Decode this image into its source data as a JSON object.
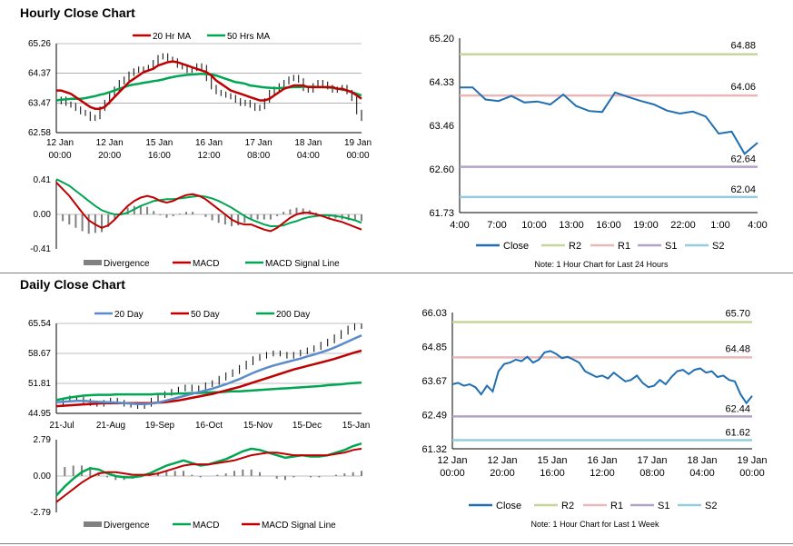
{
  "sections": [
    {
      "title": "Hourly Close Chart"
    },
    {
      "title": "Daily Close Chart"
    }
  ],
  "colors": {
    "ma_short": "#c00000",
    "ma_long": "#00a651",
    "ma_200": "#00a651",
    "ma_20day": "#5b8bc9",
    "close": "#1f6fb2",
    "r2": "#c4d79b",
    "r1": "#e6b9b8",
    "s1": "#b3a2c7",
    "s2": "#93cddd",
    "divergence": "#808080",
    "grid": "#808080"
  },
  "chart_data": [
    {
      "id": "hourly_price",
      "type": "line",
      "y_ticks": [
        "65.26",
        "64.37",
        "63.47",
        "62.58"
      ],
      "ylim": [
        62.58,
        65.26
      ],
      "x_ticks": [
        [
          "12 Jan",
          "00:00"
        ],
        [
          "12 Jan",
          "20:00"
        ],
        [
          "15 Jan",
          "16:00"
        ],
        [
          "16 Jan",
          "12:00"
        ],
        [
          "17 Jan",
          "08:00"
        ],
        [
          "18 Jan",
          "04:00"
        ],
        [
          "19 Jan",
          "00:00"
        ]
      ],
      "legend": [
        "20 Hr MA",
        "50 Hrs MA"
      ],
      "price": [
        63.5,
        63.6,
        63.45,
        63.4,
        63.3,
        63.2,
        63.15,
        63.0,
        63.05,
        63.3,
        63.5,
        63.7,
        63.9,
        64.1,
        64.2,
        64.35,
        64.45,
        64.5,
        64.5,
        64.55,
        64.7,
        64.85,
        64.9,
        64.8,
        64.75,
        64.6,
        64.55,
        64.45,
        64.5,
        64.6,
        64.55,
        64.2,
        63.95,
        63.8,
        63.75,
        63.7,
        63.65,
        63.55,
        63.45,
        63.5,
        63.4,
        63.3,
        63.35,
        63.55,
        63.8,
        63.9,
        64.0,
        64.1,
        64.2,
        64.25,
        64.15,
        63.9,
        63.85,
        64.0,
        64.1,
        64.05,
        63.95,
        63.85,
        63.9,
        63.95,
        63.8,
        63.6,
        63.2,
        63.0
      ],
      "ma20": [
        63.85,
        63.85,
        63.8,
        63.75,
        63.65,
        63.55,
        63.45,
        63.35,
        63.3,
        63.3,
        63.35,
        63.5,
        63.65,
        63.8,
        63.95,
        64.1,
        64.2,
        64.3,
        64.4,
        64.45,
        64.5,
        64.6,
        64.65,
        64.7,
        64.72,
        64.7,
        64.65,
        64.6,
        64.55,
        64.5,
        64.45,
        64.4,
        64.3,
        64.15,
        64.05,
        63.95,
        63.85,
        63.8,
        63.75,
        63.7,
        63.65,
        63.6,
        63.55,
        63.55,
        63.6,
        63.7,
        63.8,
        63.9,
        63.95,
        64.0,
        64.0,
        64.0,
        63.95,
        63.95,
        63.95,
        63.95,
        63.95,
        63.95,
        63.9,
        63.9,
        63.85,
        63.8,
        63.7,
        63.6
      ],
      "ma50": [
        63.55,
        63.57,
        63.58,
        63.6,
        63.6,
        63.6,
        63.62,
        63.65,
        63.68,
        63.72,
        63.75,
        63.8,
        63.85,
        63.9,
        63.95,
        64.0,
        64.03,
        64.05,
        64.08,
        64.1,
        64.13,
        64.15,
        64.18,
        64.22,
        64.25,
        64.28,
        64.3,
        64.32,
        64.33,
        64.34,
        64.35,
        64.34,
        64.33,
        64.3,
        64.25,
        64.2,
        64.15,
        64.1,
        64.08,
        64.05,
        64.0,
        63.98,
        63.96,
        63.94,
        63.93,
        63.92,
        63.92,
        63.93,
        63.94,
        63.95,
        63.95,
        63.96,
        63.96,
        63.96,
        63.95,
        63.95,
        63.94,
        63.93,
        63.9,
        63.88,
        63.85,
        63.8,
        63.75,
        63.7
      ]
    },
    {
      "id": "hourly_macd",
      "type": "line",
      "y_ticks": [
        "0.41",
        "0.00",
        "-0.41"
      ],
      "ylim": [
        -0.41,
        0.41
      ],
      "legend": [
        "Divergence",
        "MACD",
        "MACD Signal Line"
      ],
      "macd": [
        0.38,
        0.3,
        0.22,
        0.12,
        0.02,
        -0.07,
        -0.12,
        -0.16,
        -0.13,
        -0.06,
        0.02,
        0.1,
        0.16,
        0.2,
        0.22,
        0.2,
        0.16,
        0.14,
        0.16,
        0.2,
        0.23,
        0.24,
        0.22,
        0.18,
        0.12,
        0.06,
        0.0,
        -0.06,
        -0.1,
        -0.12,
        -0.12,
        -0.15,
        -0.18,
        -0.2,
        -0.16,
        -0.1,
        -0.04,
        0.0,
        0.02,
        0.02,
        0.0,
        -0.02,
        -0.05,
        -0.07,
        -0.09,
        -0.12,
        -0.15,
        -0.18
      ],
      "signal": [
        0.42,
        0.38,
        0.34,
        0.28,
        0.22,
        0.16,
        0.1,
        0.05,
        0.02,
        0.0,
        0.0,
        0.02,
        0.06,
        0.1,
        0.13,
        0.16,
        0.17,
        0.18,
        0.18,
        0.19,
        0.2,
        0.21,
        0.22,
        0.21,
        0.19,
        0.16,
        0.12,
        0.08,
        0.03,
        -0.02,
        -0.06,
        -0.09,
        -0.12,
        -0.14,
        -0.14,
        -0.13,
        -0.1,
        -0.08,
        -0.05,
        -0.03,
        -0.02,
        -0.01,
        -0.01,
        -0.02,
        -0.03,
        -0.05,
        -0.07,
        -0.1
      ],
      "divergence": [
        -0.04,
        -0.08,
        -0.12,
        -0.16,
        -0.2,
        -0.23,
        -0.22,
        -0.21,
        -0.15,
        -0.06,
        0.02,
        0.08,
        0.1,
        0.1,
        0.09,
        0.04,
        -0.01,
        -0.04,
        -0.02,
        0.01,
        0.03,
        0.03,
        0.0,
        -0.03,
        -0.07,
        -0.1,
        -0.12,
        -0.14,
        -0.13,
        -0.1,
        -0.06,
        -0.06,
        -0.06,
        -0.06,
        -0.02,
        0.03,
        0.06,
        0.08,
        0.07,
        0.05,
        0.02,
        -0.01,
        -0.04,
        -0.05,
        -0.06,
        -0.07,
        -0.08,
        -0.08
      ]
    },
    {
      "id": "hourly_pivot",
      "type": "line",
      "y_ticks": [
        "65.20",
        "64.33",
        "63.46",
        "62.60",
        "61.73"
      ],
      "ylim": [
        61.73,
        65.2
      ],
      "x_ticks": [
        "4:00",
        "7:00",
        "10:00",
        "13:00",
        "16:00",
        "19:00",
        "22:00",
        "1:00",
        "4:00"
      ],
      "legend": [
        "Close",
        "R2",
        "R1",
        "S1",
        "S2"
      ],
      "levels": {
        "r2": 64.88,
        "r1": 64.06,
        "s1": 62.64,
        "s2": 62.04
      },
      "level_labels": {
        "r2": "64.88",
        "r1": "64.06",
        "s1": "62.64",
        "s2": "62.04"
      },
      "close": [
        64.22,
        64.22,
        63.98,
        63.95,
        64.05,
        63.92,
        63.94,
        63.88,
        64.08,
        63.85,
        63.75,
        63.73,
        64.12,
        64.03,
        63.95,
        63.88,
        63.76,
        63.7,
        63.74,
        63.64,
        63.3,
        63.34,
        62.9,
        63.12
      ],
      "note": "Note: 1 Hour Chart for Last 24 Hours"
    },
    {
      "id": "daily_price",
      "type": "line",
      "y_ticks": [
        "65.54",
        "58.67",
        "51.81",
        "44.95"
      ],
      "ylim": [
        44.95,
        65.54
      ],
      "x_ticks": [
        "21-Jul",
        "21-Aug",
        "19-Sep",
        "16-Oct",
        "15-Nov",
        "15-Dec",
        "15-Jan"
      ],
      "legend": [
        "20 Day",
        "50 Day",
        "200 Day"
      ],
      "price": [
        47.0,
        48.0,
        48.5,
        48.2,
        47.8,
        47.2,
        47.0,
        47.5,
        48.0,
        47.5,
        47.0,
        46.8,
        46.5,
        47.0,
        48.0,
        49.0,
        49.5,
        50.0,
        50.5,
        51.0,
        50.5,
        50.8,
        51.5,
        52.0,
        53.0,
        53.8,
        54.5,
        55.5,
        56.5,
        57.5,
        58.0,
        58.5,
        58.8,
        58.5,
        58.0,
        58.5,
        59.0,
        59.5,
        60.0,
        60.8,
        61.5,
        62.5,
        63.5,
        64.5,
        65.0,
        64.8
      ],
      "ma20": [
        47.5,
        47.6,
        47.7,
        47.8,
        47.8,
        47.7,
        47.6,
        47.5,
        47.5,
        47.4,
        47.3,
        47.2,
        47.1,
        47.1,
        47.2,
        47.4,
        47.8,
        48.2,
        48.6,
        49.0,
        49.4,
        49.8,
        50.2,
        50.6,
        51.1,
        51.6,
        52.2,
        52.8,
        53.5,
        54.2,
        54.8,
        55.4,
        55.9,
        56.3,
        56.7,
        57.1,
        57.5,
        58.0,
        58.4,
        58.9,
        59.4,
        60.0,
        60.7,
        61.4,
        62.1,
        62.8
      ],
      "ma50": [
        46.6,
        46.7,
        46.8,
        46.9,
        47.0,
        47.1,
        47.2,
        47.3,
        47.3,
        47.3,
        47.3,
        47.3,
        47.3,
        47.3,
        47.3,
        47.4,
        47.5,
        47.7,
        47.9,
        48.2,
        48.5,
        48.8,
        49.1,
        49.4,
        49.8,
        50.2,
        50.6,
        51.0,
        51.5,
        52.0,
        52.5,
        53.0,
        53.5,
        54.0,
        54.5,
        55.0,
        55.4,
        55.8,
        56.2,
        56.6,
        57.0,
        57.4,
        57.9,
        58.4,
        58.9,
        59.3
      ],
      "ma200": [
        48.0,
        48.3,
        48.6,
        48.8,
        49.0,
        49.1,
        49.2,
        49.2,
        49.2,
        49.3,
        49.3,
        49.3,
        49.3,
        49.3,
        49.3,
        49.4,
        49.4,
        49.4,
        49.5,
        49.5,
        49.6,
        49.6,
        49.7,
        49.8,
        49.8,
        49.9,
        50.0,
        50.0,
        50.1,
        50.2,
        50.3,
        50.4,
        50.5,
        50.6,
        50.7,
        50.8,
        50.9,
        51.0,
        51.1,
        51.2,
        51.4,
        51.5,
        51.6,
        51.8,
        51.9,
        52.0
      ]
    },
    {
      "id": "daily_macd",
      "type": "line",
      "y_ticks": [
        "2.79",
        "0.00",
        "-2.79"
      ],
      "ylim": [
        -2.79,
        2.79
      ],
      "legend": [
        "Divergence",
        "MACD",
        "MACD Signal Line"
      ],
      "macd": [
        -1.5,
        -0.8,
        -0.2,
        0.3,
        0.6,
        0.5,
        0.2,
        0.0,
        -0.1,
        -0.1,
        0.0,
        0.2,
        0.5,
        0.8,
        1.0,
        1.2,
        1.0,
        0.8,
        0.9,
        1.1,
        1.3,
        1.6,
        1.9,
        2.1,
        2.0,
        1.8,
        1.6,
        1.4,
        1.5,
        1.6,
        1.5,
        1.5,
        1.6,
        1.8,
        2.0,
        2.3,
        2.5
      ],
      "signal": [
        -2.0,
        -1.5,
        -1.0,
        -0.5,
        -0.1,
        0.2,
        0.3,
        0.3,
        0.2,
        0.1,
        0.1,
        0.1,
        0.2,
        0.4,
        0.6,
        0.8,
        0.9,
        0.9,
        0.9,
        1.0,
        1.1,
        1.2,
        1.4,
        1.6,
        1.7,
        1.8,
        1.8,
        1.7,
        1.6,
        1.6,
        1.6,
        1.6,
        1.6,
        1.7,
        1.8,
        2.0,
        2.1
      ],
      "divergence": [
        0.5,
        0.7,
        0.8,
        0.8,
        0.7,
        0.3,
        -0.1,
        -0.3,
        -0.3,
        -0.2,
        -0.1,
        0.1,
        0.3,
        0.4,
        0.4,
        0.4,
        0.1,
        -0.1,
        0.0,
        0.1,
        0.2,
        0.4,
        0.5,
        0.5,
        0.3,
        0.0,
        -0.2,
        -0.3,
        -0.1,
        0.0,
        -0.1,
        -0.1,
        0.0,
        0.1,
        0.2,
        0.3,
        0.4
      ]
    },
    {
      "id": "daily_pivot",
      "type": "line",
      "y_ticks": [
        "66.03",
        "64.85",
        "63.67",
        "62.49",
        "61.32"
      ],
      "ylim": [
        61.32,
        66.03
      ],
      "x_ticks": [
        [
          "12 Jan",
          "00:00"
        ],
        [
          "12 Jan",
          "20:00"
        ],
        [
          "15 Jan",
          "16:00"
        ],
        [
          "16 Jan",
          "12:00"
        ],
        [
          "17 Jan",
          "08:00"
        ],
        [
          "18 Jan",
          "04:00"
        ],
        [
          "19 Jan",
          "00:00"
        ]
      ],
      "legend": [
        "Close",
        "R2",
        "R1",
        "S1",
        "S2"
      ],
      "levels": {
        "r2": 65.7,
        "r1": 64.48,
        "s1": 62.44,
        "s2": 61.62
      },
      "level_labels": {
        "r2": "65.70",
        "r1": "64.48",
        "s1": "62.44",
        "s2": "61.62"
      },
      "close": [
        63.55,
        63.6,
        63.5,
        63.55,
        63.45,
        63.2,
        63.5,
        63.3,
        64.0,
        64.25,
        64.3,
        64.4,
        64.35,
        64.5,
        64.3,
        64.4,
        64.65,
        64.7,
        64.6,
        64.45,
        64.5,
        64.4,
        64.3,
        64.0,
        63.9,
        63.8,
        63.85,
        63.75,
        63.95,
        63.8,
        63.65,
        63.7,
        63.85,
        63.6,
        63.45,
        63.5,
        63.7,
        63.55,
        63.8,
        64.0,
        64.05,
        63.9,
        64.05,
        64.1,
        63.95,
        64.0,
        63.8,
        63.85,
        63.7,
        63.65,
        63.2,
        62.9,
        63.15
      ],
      "note": "Note: 1 Hour Chart for Last 1 Week"
    }
  ]
}
